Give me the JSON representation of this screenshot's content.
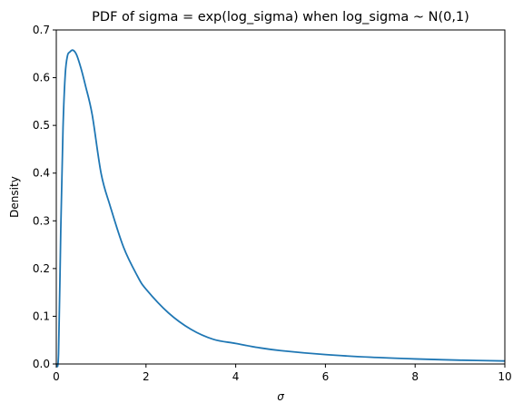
{
  "chart_data": {
    "type": "line",
    "title": "PDF of sigma = exp(log_sigma) when log_sigma ~ N(0,1)",
    "xlabel": "σ",
    "ylabel": "Density",
    "xlim": [
      0,
      10
    ],
    "ylim": [
      0,
      0.7
    ],
    "xticks": [
      0,
      2,
      4,
      6,
      8,
      10
    ],
    "yticks": [
      0.0,
      0.1,
      0.2,
      0.3,
      0.4,
      0.5,
      0.6,
      0.7
    ],
    "xtick_labels": [
      "0",
      "2",
      "4",
      "6",
      "8",
      "10"
    ],
    "ytick_labels": [
      "0.0",
      "0.1",
      "0.2",
      "0.3",
      "0.4",
      "0.5",
      "0.6",
      "0.7"
    ],
    "grid": false,
    "line_color": "#1f77b4",
    "series": [
      {
        "x": [
          0.0,
          0.05,
          0.1,
          0.15,
          0.2,
          0.25,
          0.3,
          0.368,
          0.45,
          0.55,
          0.65,
          0.8,
          1.0,
          1.2,
          1.5,
          1.8,
          2.0,
          2.5,
          3.0,
          3.5,
          4.0,
          4.5,
          5.0,
          6.0,
          7.0,
          8.0,
          9.0,
          10.0
        ],
        "y": [
          0.0,
          0.0217,
          0.2815,
          0.4945,
          0.6076,
          0.6462,
          0.6536,
          0.6577,
          0.6485,
          0.6199,
          0.5834,
          0.5226,
          0.3989,
          0.3313,
          0.2445,
          0.1858,
          0.1568,
          0.1071,
          0.0727,
          0.0517,
          0.0431,
          0.0344,
          0.0281,
          0.0197,
          0.0142,
          0.0106,
          0.008,
          0.0063
        ]
      }
    ]
  }
}
